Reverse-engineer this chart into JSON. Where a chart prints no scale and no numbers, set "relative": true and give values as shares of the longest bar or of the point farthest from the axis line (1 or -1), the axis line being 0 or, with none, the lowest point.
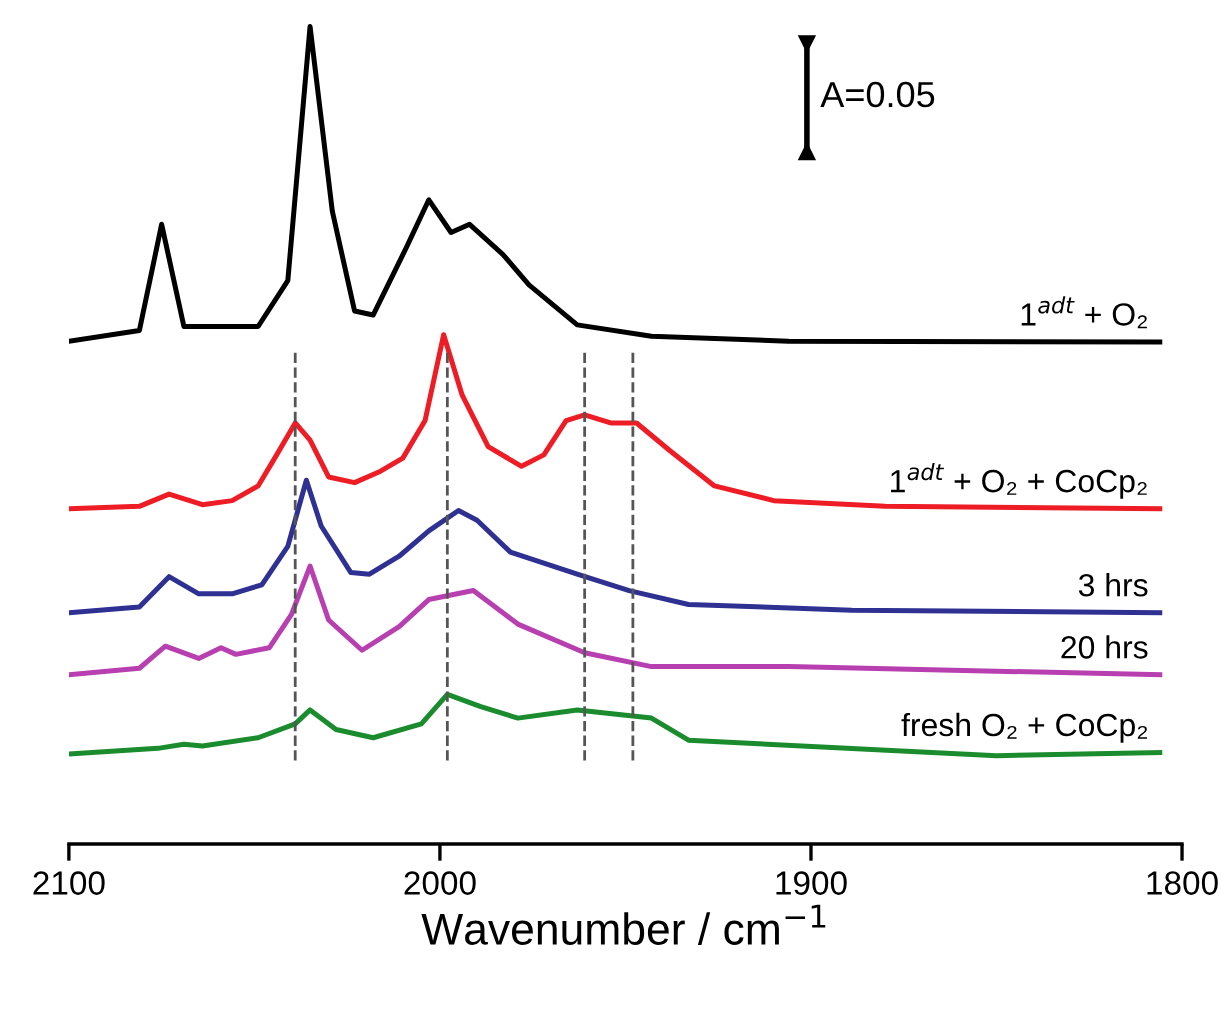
{
  "chart_data": {
    "type": "line",
    "relative": true,
    "xlabel": "Wavenumber / cm$^{−1}$",
    "xlim": [
      2100,
      1800
    ],
    "xticks": [
      2100,
      2000,
      1900,
      1800
    ],
    "tick_labels": "x",
    "grid": false,
    "legend": false,
    "marker": "none",
    "line_style": "solid",
    "annotations": [
      "A=0.05"
    ],
    "ref_lines": [
      {
        "axis": "x",
        "value": 2039,
        "label": null,
        "color": "#555555",
        "line_style": "dashed"
      },
      {
        "axis": "x",
        "value": 1998,
        "label": null,
        "color": "#555555",
        "line_style": "dashed"
      },
      {
        "axis": "x",
        "value": 1961,
        "label": null,
        "color": "#555555",
        "line_style": "dashed"
      },
      {
        "axis": "x",
        "value": 1948,
        "label": null,
        "color": "#555555",
        "line_style": "dashed"
      }
    ],
    "series": [
      {
        "name": "1$^{adt}$ + O₂",
        "color": "#000000",
        "x": [
          2100,
          2081,
          2075,
          2069,
          2049,
          2041,
          2035,
          2029,
          2023,
          2018,
          2009,
          2003,
          1997,
          1992,
          1983,
          1976,
          1963,
          1943,
          1906,
          1806
        ],
        "values": [
          0.615,
          0.628,
          0.758,
          0.633,
          0.633,
          0.689,
          1.0,
          0.774,
          0.652,
          0.647,
          0.73,
          0.788,
          0.748,
          0.758,
          0.721,
          0.684,
          0.635,
          0.621,
          0.615,
          0.614
        ]
      },
      {
        "name": "1$^{adt}$ + O₂ + CoCp₂",
        "color": "#ee1c25",
        "x": [
          2100,
          2081,
          2073,
          2064,
          2056,
          2049,
          2044,
          2039,
          2035,
          2030,
          2023,
          2016,
          2010,
          2004,
          1999,
          1994,
          1987,
          1978,
          1972,
          1966,
          1961,
          1954,
          1947,
          1938,
          1926,
          1910,
          1880,
          1806
        ],
        "values": [
          0.41,
          0.413,
          0.428,
          0.415,
          0.42,
          0.438,
          0.476,
          0.515,
          0.494,
          0.449,
          0.442,
          0.456,
          0.472,
          0.518,
          0.623,
          0.549,
          0.486,
          0.462,
          0.476,
          0.518,
          0.525,
          0.515,
          0.515,
          0.481,
          0.438,
          0.42,
          0.413,
          0.41
        ]
      },
      {
        "name": "3 hrs",
        "color": "#2e3192",
        "x": [
          2100,
          2081,
          2073,
          2065,
          2056,
          2048,
          2041,
          2036,
          2032,
          2024,
          2019,
          2011,
          2003,
          1995,
          1990,
          1981,
          1963,
          1949,
          1933,
          1889,
          1806
        ],
        "values": [
          0.283,
          0.29,
          0.327,
          0.306,
          0.306,
          0.317,
          0.364,
          0.445,
          0.389,
          0.332,
          0.33,
          0.352,
          0.383,
          0.408,
          0.396,
          0.357,
          0.33,
          0.31,
          0.293,
          0.286,
          0.283
        ]
      },
      {
        "name": "20 hrs",
        "color": "#b83fb0",
        "x": [
          2100,
          2081,
          2074,
          2065,
          2059,
          2055,
          2046,
          2040,
          2035,
          2030,
          2021,
          2011,
          2003,
          1991,
          1979,
          1961,
          1943,
          1906,
          1806
        ],
        "values": [
          0.207,
          0.215,
          0.242,
          0.227,
          0.24,
          0.232,
          0.24,
          0.281,
          0.34,
          0.274,
          0.237,
          0.266,
          0.299,
          0.31,
          0.269,
          0.234,
          0.217,
          0.217,
          0.207
        ]
      },
      {
        "name": "fresh O₂ + CoCp₂",
        "color": "#1a8c2e",
        "x": [
          2100,
          2076,
          2069,
          2064,
          2049,
          2039,
          2035,
          2028,
          2018,
          2005,
          1998,
          1989,
          1979,
          1963,
          1943,
          1933,
          1850,
          1806
        ],
        "values": [
          0.11,
          0.117,
          0.122,
          0.12,
          0.13,
          0.147,
          0.164,
          0.14,
          0.13,
          0.147,
          0.183,
          0.168,
          0.154,
          0.164,
          0.154,
          0.127,
          0.108,
          0.112
        ]
      }
    ]
  }
}
